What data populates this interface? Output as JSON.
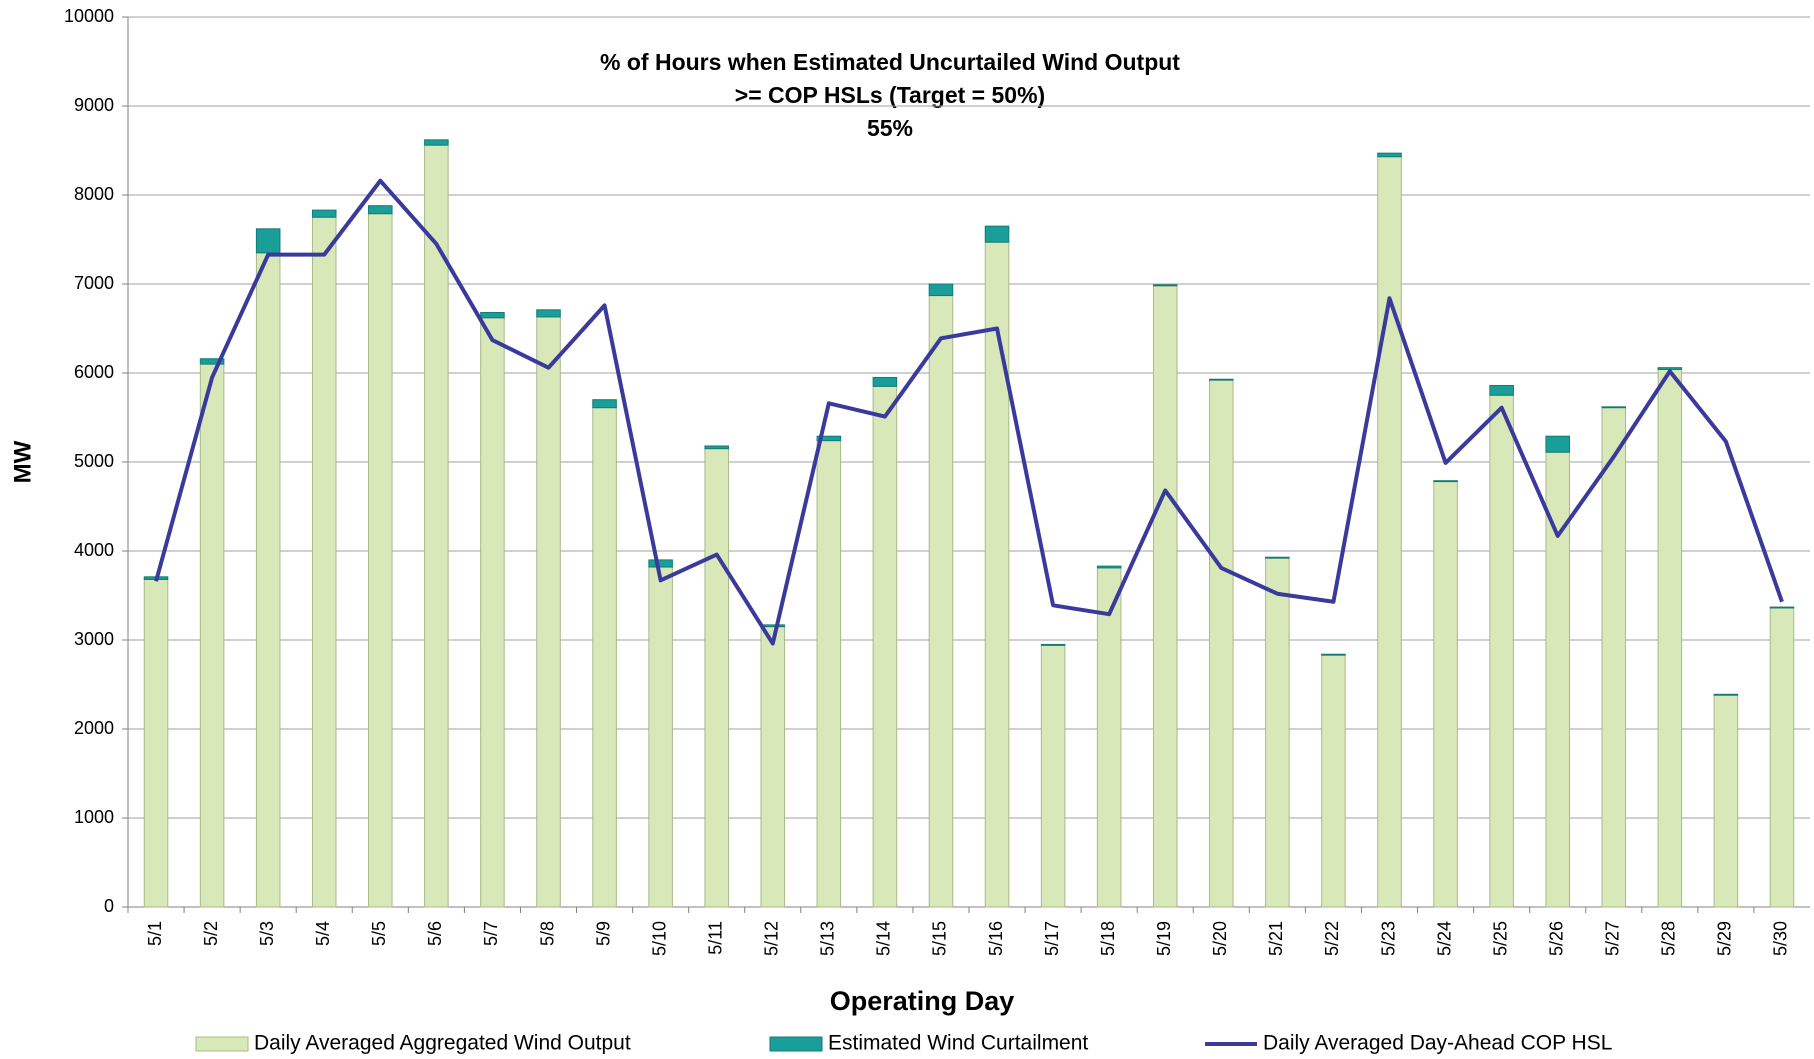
{
  "chart_data": {
    "type": "bar",
    "annotation": [
      "% of Hours when Estimated Uncurtailed Wind Output",
      ">= COP HSLs (Target = 50%)",
      "55%"
    ],
    "xlabel": "Operating Day",
    "ylabel": "MW",
    "categories": [
      "5/1",
      "5/2",
      "5/3",
      "5/4",
      "5/5",
      "5/6",
      "5/7",
      "5/8",
      "5/9",
      "5/10",
      "5/11",
      "5/12",
      "5/13",
      "5/14",
      "5/15",
      "5/16",
      "5/17",
      "5/18",
      "5/19",
      "5/20",
      "5/21",
      "5/22",
      "5/23",
      "5/24",
      "5/25",
      "5/26",
      "5/27",
      "5/28",
      "5/29",
      "5/30"
    ],
    "series": [
      {
        "name": "Daily Averaged Aggregated Wind Output",
        "type": "bar",
        "color": "#d9e8b8",
        "values": [
          3680,
          6100,
          7350,
          7750,
          7790,
          8560,
          6620,
          6630,
          5610,
          3820,
          5150,
          3150,
          5240,
          5850,
          6870,
          7470,
          2940,
          3810,
          6980,
          5920,
          3920,
          2830,
          8430,
          4780,
          5750,
          5110,
          5610,
          6040,
          2380,
          3360
        ]
      },
      {
        "name": "Estimated Wind Curtailment",
        "type": "bar",
        "color": "#1a9e9a",
        "values": [
          30,
          60,
          270,
          80,
          90,
          60,
          60,
          80,
          90,
          80,
          30,
          20,
          50,
          100,
          130,
          180,
          10,
          20,
          10,
          10,
          10,
          10,
          40,
          10,
          110,
          180,
          10,
          20,
          10,
          10
        ]
      },
      {
        "name": "Daily Averaged Day-Ahead COP HSL",
        "type": "line",
        "color": "#3a3a9c",
        "values": [
          3660,
          5950,
          7330,
          7330,
          8160,
          7450,
          6370,
          6060,
          6760,
          3670,
          3960,
          2960,
          5660,
          5510,
          6390,
          6500,
          3390,
          3290,
          4680,
          3810,
          3520,
          3430,
          6840,
          4990,
          5610,
          4170,
          5060,
          6020,
          5230,
          3430
        ]
      }
    ],
    "ylim": [
      0,
      10000
    ],
    "yticks": [
      0,
      1000,
      2000,
      3000,
      4000,
      5000,
      6000,
      7000,
      8000,
      9000,
      10000
    ],
    "grid": true,
    "stacked": true,
    "legend": "bottom"
  }
}
